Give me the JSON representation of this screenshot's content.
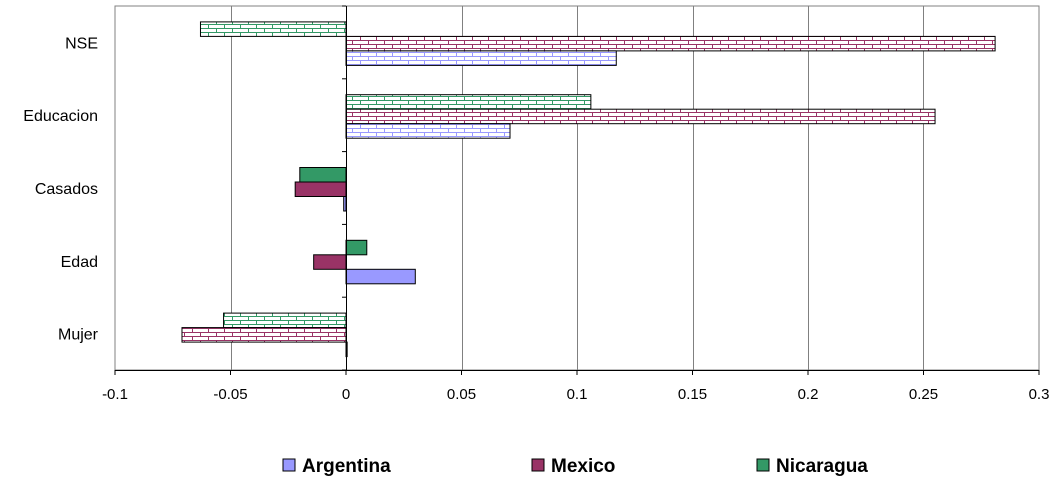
{
  "chart_data": {
    "type": "bar",
    "orientation": "horizontal",
    "categories": [
      "NSE",
      "Educacion",
      "Casados",
      "Edad",
      "Mujer"
    ],
    "series": [
      {
        "name": "Argentina",
        "values": [
          0.117,
          0.071,
          -0.001,
          0.03,
          0.0005
        ],
        "color": "#9999ff",
        "pattern_series": [
          true,
          true,
          false,
          false,
          false
        ]
      },
      {
        "name": "Mexico",
        "values": [
          0.281,
          0.255,
          -0.022,
          -0.014,
          -0.071
        ],
        "color": "#993366",
        "pattern_series": [
          true,
          true,
          false,
          false,
          true
        ]
      },
      {
        "name": "Nicaragua",
        "values": [
          -0.063,
          0.106,
          -0.02,
          0.009,
          -0.053
        ],
        "color": "#339966",
        "pattern_series": [
          true,
          true,
          false,
          false,
          true
        ]
      }
    ],
    "xlim": [
      -0.1,
      0.3
    ],
    "xticks": [
      "-0.1",
      "-0.05",
      "0",
      "0.05",
      "0.1",
      "0.15",
      "0.2",
      "0.25",
      "0.3"
    ],
    "grid": "vertical",
    "legend_position": "bottom"
  }
}
